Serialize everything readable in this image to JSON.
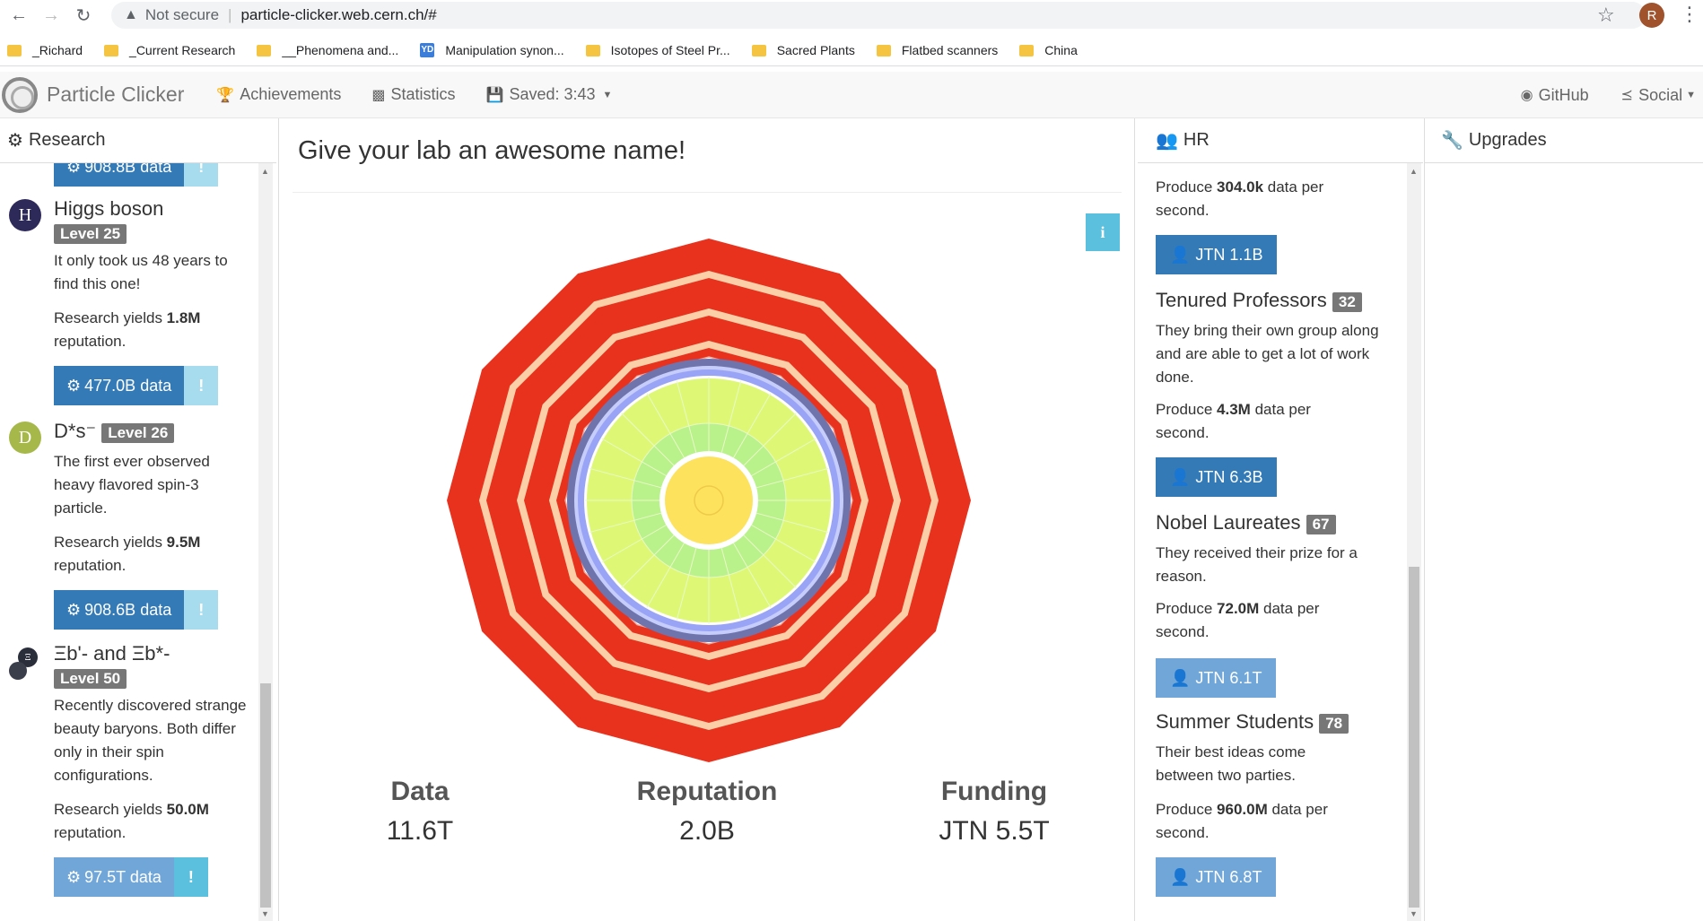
{
  "browser": {
    "security": "Not secure",
    "url": "particle-clicker.web.cern.ch/#",
    "profile_initial": "R",
    "bookmarks": [
      "_Richard",
      "_Current Research",
      "__Phenomena and...",
      "Manipulation synon...",
      "Isotopes of Steel Pr...",
      "Sacred Plants",
      "Flatbed scanners",
      "China"
    ]
  },
  "navbar": {
    "brand": "Particle Clicker",
    "achievements": "Achievements",
    "statistics": "Statistics",
    "saved": "Saved: 3:43",
    "github": "GitHub",
    "social": "Social"
  },
  "research": {
    "title": "Research",
    "top_button": "908.8B data",
    "items": [
      {
        "name": "Higgs boson",
        "icon_letter": "H",
        "level": "Level 25",
        "desc": "It only took us 48 years to find this one!",
        "yield_pre": "Research yields ",
        "yield_val": "1.8M",
        "yield_post": " reputation.",
        "cost": "477.0B data"
      },
      {
        "name": "D*s⁻",
        "icon_letter": "D",
        "level": "Level 26",
        "desc": "The first ever observed heavy flavored spin-3 particle.",
        "yield_pre": "Research yields ",
        "yield_val": "9.5M",
        "yield_post": " reputation.",
        "cost": "908.6B data"
      },
      {
        "name": "Ξb'- and Ξb*-",
        "icon_letter": "Ξ",
        "level": "Level 50",
        "desc": "Recently discovered strange beauty baryons. Both differ only in their spin configurations.",
        "yield_pre": "Research yields ",
        "yield_val": "50.0M",
        "yield_post": " reputation.",
        "cost": "97.5T data"
      }
    ],
    "exclaim": "!"
  },
  "center": {
    "lab_name": "Give your lab an awesome name!",
    "info": "i",
    "stats": [
      {
        "label": "Data",
        "value": "11.6T"
      },
      {
        "label": "Reputation",
        "value": "2.0B"
      },
      {
        "label": "Funding",
        "value": "JTN 5.5T"
      }
    ]
  },
  "hr": {
    "title": "HR",
    "top_text_pre": "Produce ",
    "top_text_val": "304.0k",
    "top_text_post": " data per second.",
    "top_cost": "JTN 1.1B",
    "items": [
      {
        "name": "Tenured Professors",
        "count": "32",
        "desc": "They bring their own group along and are able to get a lot of work done.",
        "prod_pre": "Produce ",
        "prod_val": "4.3M",
        "prod_post": " data per second.",
        "cost": "JTN 6.3B"
      },
      {
        "name": "Nobel Laureates",
        "count": "67",
        "desc": "They received their prize for a reason.",
        "prod_pre": "Produce ",
        "prod_val": "72.0M",
        "prod_post": " data per second.",
        "cost": "JTN 6.1T"
      },
      {
        "name": "Summer Students",
        "count": "78",
        "desc": "Their best ideas come between two parties.",
        "prod_pre": "Produce ",
        "prod_val": "960.0M",
        "prod_post": " data per second.",
        "cost": "JTN 6.8T"
      }
    ]
  },
  "upgrades": {
    "title": "Upgrades"
  },
  "colors": {
    "primary": "#337ab7",
    "info": "#5bc0de",
    "badge": "#777777",
    "detector_red": "#e8321e"
  }
}
